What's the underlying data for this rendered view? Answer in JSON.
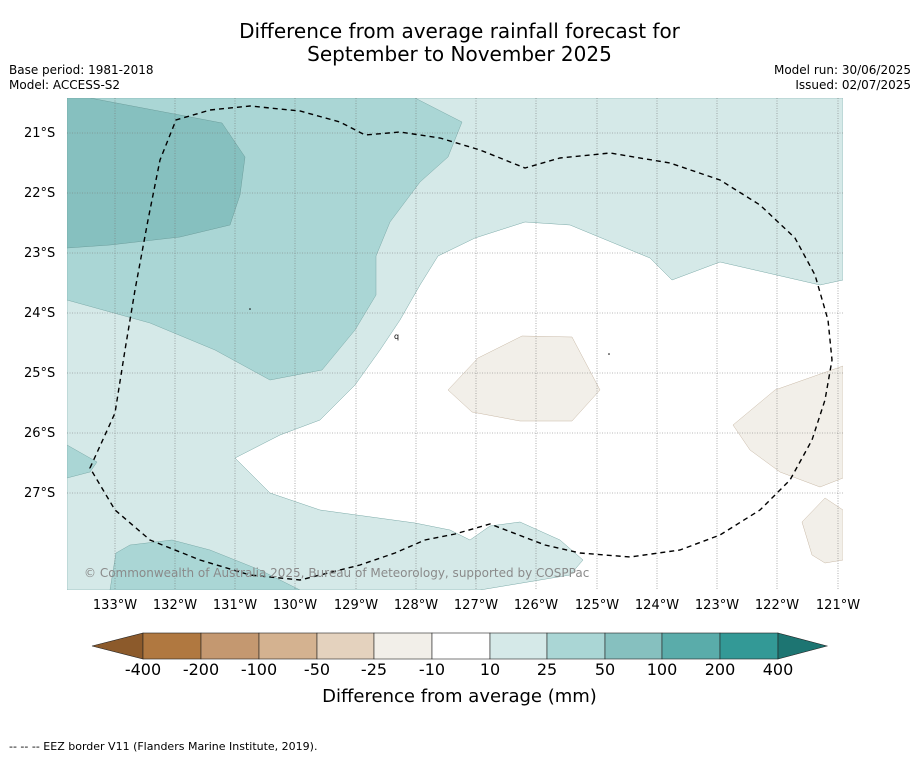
{
  "title_line1": "Difference from average rainfall forecast for",
  "title_line2": "September to November 2025",
  "base_period": "Base period: 1981-2018",
  "model": "Model: ACCESS-S2",
  "model_run": "Model run: 30/06/2025",
  "issued": "Issued: 02/07/2025",
  "copyright": "© Commonwealth of Australia 2025, Bureau of Meteorology, supported by COSPPac",
  "lat_labels": [
    "21°S",
    "22°S",
    "23°S",
    "24°S",
    "25°S",
    "26°S",
    "27°S"
  ],
  "lon_labels": [
    "133°W",
    "132°W",
    "131°W",
    "130°W",
    "129°W",
    "128°W",
    "127°W",
    "126°W",
    "125°W",
    "124°W",
    "123°W",
    "122°W",
    "121°W"
  ],
  "colorbar": {
    "labels": [
      "-400",
      "-200",
      "-100",
      "-50",
      "-25",
      "-10",
      "10",
      "25",
      "50",
      "100",
      "200",
      "400"
    ],
    "colors": [
      "#8c5a2b",
      "#b07840",
      "#c49870",
      "#d4b290",
      "#e4d2be",
      "#f2efe9",
      "#ffffff",
      "#d5e9e8",
      "#aad6d5",
      "#86c0bf",
      "#5aacaa",
      "#339996",
      "#1d7572"
    ],
    "title": "Difference from average (mm)"
  },
  "map_colors": {
    "light_teal": "#d5e9e8",
    "mid_teal": "#aad6d5",
    "dark_teal": "#86c0bf",
    "light_brown": "#f2efe9",
    "eez_border": "#000000"
  },
  "footnote": "--  --  -- EEZ border V11 (Flanders Marine Institute, 2019)."
}
